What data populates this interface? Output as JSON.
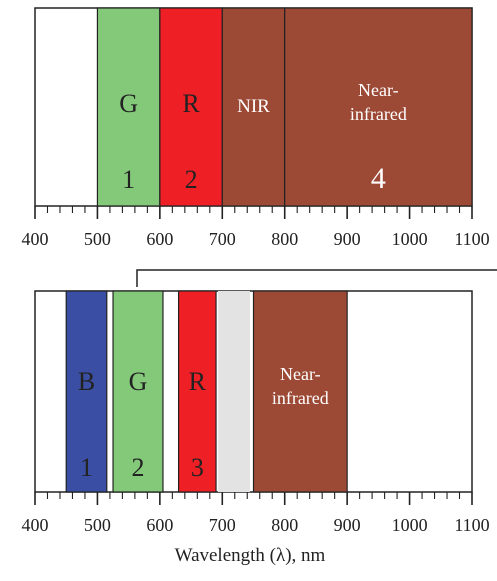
{
  "panels": [
    {
      "id": "top",
      "axis_min": 400,
      "axis_max": 1100,
      "tick_labels": [
        "400",
        "500",
        "600",
        "700",
        "800",
        "900",
        "1000",
        "1100"
      ],
      "bands": [
        {
          "id": "g",
          "start_nm": 500,
          "end_nm": 600,
          "color": "#84c97a",
          "letter": "G",
          "number": "1",
          "text_color": "#222222"
        },
        {
          "id": "r",
          "start_nm": 600,
          "end_nm": 700,
          "color": "#ee2026",
          "letter": "R",
          "number": "2",
          "text_color": "#222222"
        },
        {
          "id": "nir",
          "start_nm": 700,
          "end_nm": 800,
          "color": "#9c4a36",
          "letter": "NIR",
          "number": "",
          "text_color": "#ffffff"
        },
        {
          "id": "near-infrared",
          "start_nm": 800,
          "end_nm": 1100,
          "color": "#9c4a36",
          "letter": "Near-|infrared",
          "number": "4",
          "text_color": "#ffffff"
        }
      ]
    },
    {
      "id": "bottom",
      "axis_min": 400,
      "axis_max": 1100,
      "tick_labels": [
        "400",
        "500",
        "600",
        "700",
        "800",
        "900",
        "1000",
        "1100"
      ],
      "bands": [
        {
          "id": "b",
          "start_nm": 450,
          "end_nm": 515,
          "color": "#3a4fa3",
          "letter": "B",
          "number": "1",
          "text_color": "#222222"
        },
        {
          "id": "g",
          "start_nm": 525,
          "end_nm": 605,
          "color": "#84c97a",
          "letter": "G",
          "number": "2",
          "text_color": "#222222"
        },
        {
          "id": "r",
          "start_nm": 630,
          "end_nm": 690,
          "color": "#ee2026",
          "letter": "R",
          "number": "3",
          "text_color": "#222222"
        },
        {
          "id": "near-infrared",
          "start_nm": 750,
          "end_nm": 900,
          "color": "#9c4a36",
          "letter": "Near-|infrared",
          "number": "",
          "text_color": "#ffffff"
        }
      ]
    }
  ],
  "x_axis_label": "Wavelength (λ), nm"
}
